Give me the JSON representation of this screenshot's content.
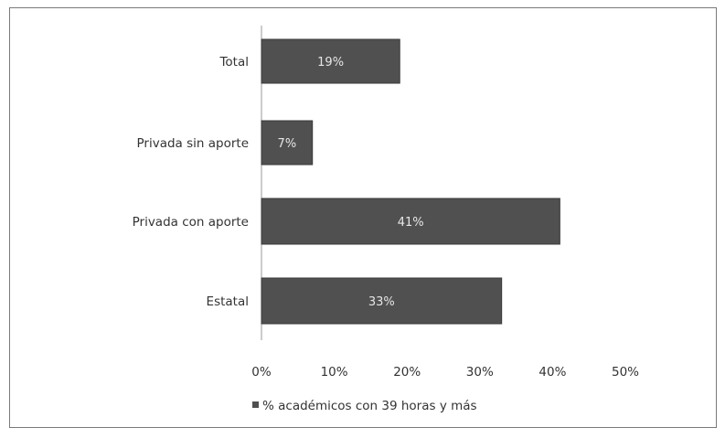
{
  "chart_data": {
    "type": "bar",
    "orientation": "horizontal",
    "categories": [
      "Total",
      "Privada sin aporte",
      "Privada con aporte",
      "Estatal"
    ],
    "series": [
      {
        "name": "% académicos con 39 horas y más",
        "values": [
          19,
          7,
          41,
          33
        ]
      }
    ],
    "data_labels": [
      "19%",
      "7%",
      "41%",
      "33%"
    ],
    "x_ticks": [
      "0%",
      "10%",
      "20%",
      "30%",
      "40%",
      "50%"
    ],
    "xlim": [
      0,
      50
    ],
    "grid": false,
    "legend": {
      "position": "bottom-left",
      "text": "% académicos con 39 horas y más"
    },
    "colors": {
      "bar": "#505050",
      "bar_edge": "#3a3a3a",
      "axis": "#9a9a9a",
      "text": "#333333"
    }
  }
}
